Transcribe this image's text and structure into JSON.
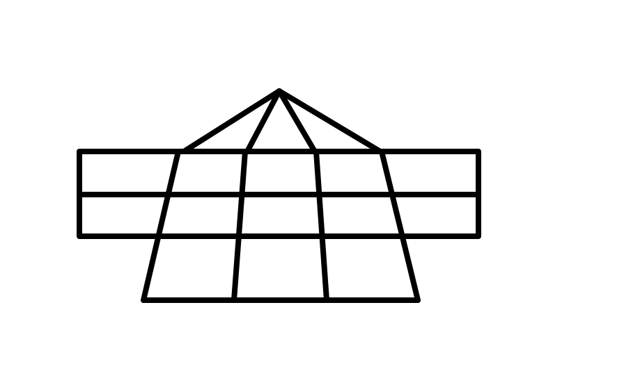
{
  "figure": {
    "background": "#ffffff",
    "stroke_color": "#000000"
  }
}
